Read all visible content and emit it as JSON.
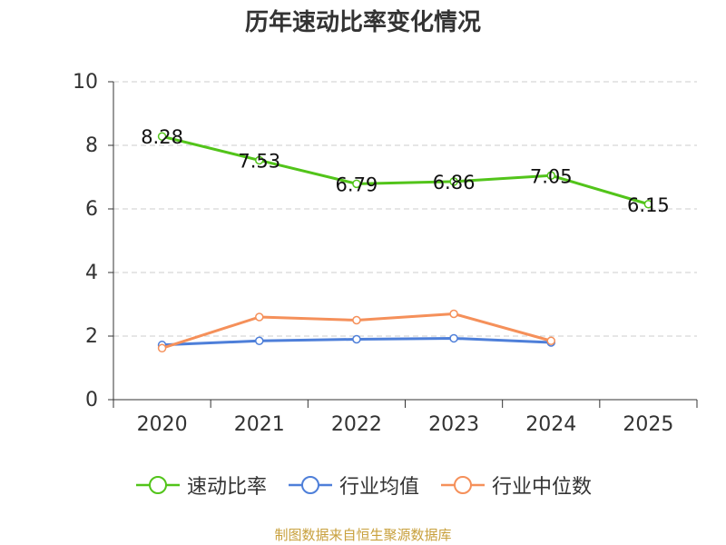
{
  "chart_data": {
    "type": "line",
    "title": "历年速动比率变化情况",
    "categories": [
      "2020",
      "2021",
      "2022",
      "2023",
      "2024",
      "2025"
    ],
    "ylim": [
      0,
      10
    ],
    "yticks": [
      0,
      2,
      4,
      6,
      8,
      10
    ],
    "grid": true,
    "legend_position": "bottom",
    "series": [
      {
        "name": "速动比率",
        "color": "#52c41a",
        "values": [
          8.28,
          7.53,
          6.79,
          6.86,
          7.05,
          6.15
        ],
        "labels": [
          "8.28",
          "7.53",
          "6.79",
          "6.86",
          "7.05",
          "6.15"
        ]
      },
      {
        "name": "行业均值",
        "color": "#4e7fd9",
        "values": [
          1.72,
          1.85,
          1.9,
          1.93,
          1.8,
          null
        ]
      },
      {
        "name": "行业中位数",
        "color": "#f5905a",
        "values": [
          1.62,
          2.6,
          2.5,
          2.7,
          1.85,
          null
        ]
      }
    ]
  },
  "source": "制图数据来自恒生聚源数据库"
}
